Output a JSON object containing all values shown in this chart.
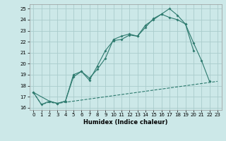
{
  "xlabel": "Humidex (Indice chaleur)",
  "bg_color": "#cce8e8",
  "grid_color": "#aacccc",
  "line_color": "#2d7a6e",
  "xlim": [
    -0.5,
    23.5
  ],
  "ylim": [
    15.8,
    25.4
  ],
  "yticks": [
    16,
    17,
    18,
    19,
    20,
    21,
    22,
    23,
    24,
    25
  ],
  "xticks": [
    0,
    1,
    2,
    3,
    4,
    5,
    6,
    7,
    8,
    9,
    10,
    11,
    12,
    13,
    14,
    15,
    16,
    17,
    18,
    19,
    20,
    21,
    22,
    23
  ],
  "line_dashed_x": [
    0,
    1,
    2,
    3,
    4,
    5,
    6,
    7,
    8,
    9,
    10,
    11,
    12,
    13,
    14,
    15,
    16,
    17,
    18,
    19,
    20,
    21,
    22,
    23
  ],
  "line_dashed_y": [
    17.4,
    16.3,
    16.5,
    16.4,
    16.5,
    16.6,
    16.7,
    16.8,
    16.9,
    17.0,
    17.1,
    17.2,
    17.3,
    17.4,
    17.5,
    17.6,
    17.7,
    17.8,
    17.9,
    18.0,
    18.1,
    18.2,
    18.3,
    18.4
  ],
  "line_a_x": [
    0,
    1,
    2,
    3,
    4,
    5,
    6,
    7,
    8,
    9,
    10,
    11,
    12,
    13,
    14,
    15,
    16,
    17,
    18,
    19,
    20,
    21,
    22
  ],
  "line_a_y": [
    17.4,
    16.3,
    16.6,
    16.4,
    16.6,
    19.0,
    19.3,
    18.7,
    19.5,
    20.5,
    22.2,
    22.5,
    22.7,
    22.5,
    23.3,
    24.1,
    24.5,
    25.0,
    24.4,
    23.6,
    21.9,
    20.3,
    18.4
  ],
  "line_b_x": [
    0,
    2,
    3,
    4,
    5,
    6,
    7,
    8,
    9,
    10,
    11,
    12,
    13,
    14,
    15,
    16,
    17,
    18,
    19,
    20
  ],
  "line_b_y": [
    17.4,
    16.6,
    16.4,
    16.6,
    18.8,
    19.3,
    18.5,
    19.8,
    21.2,
    22.1,
    22.2,
    22.6,
    22.5,
    23.5,
    24.0,
    24.5,
    24.2,
    24.0,
    23.6,
    21.2
  ]
}
